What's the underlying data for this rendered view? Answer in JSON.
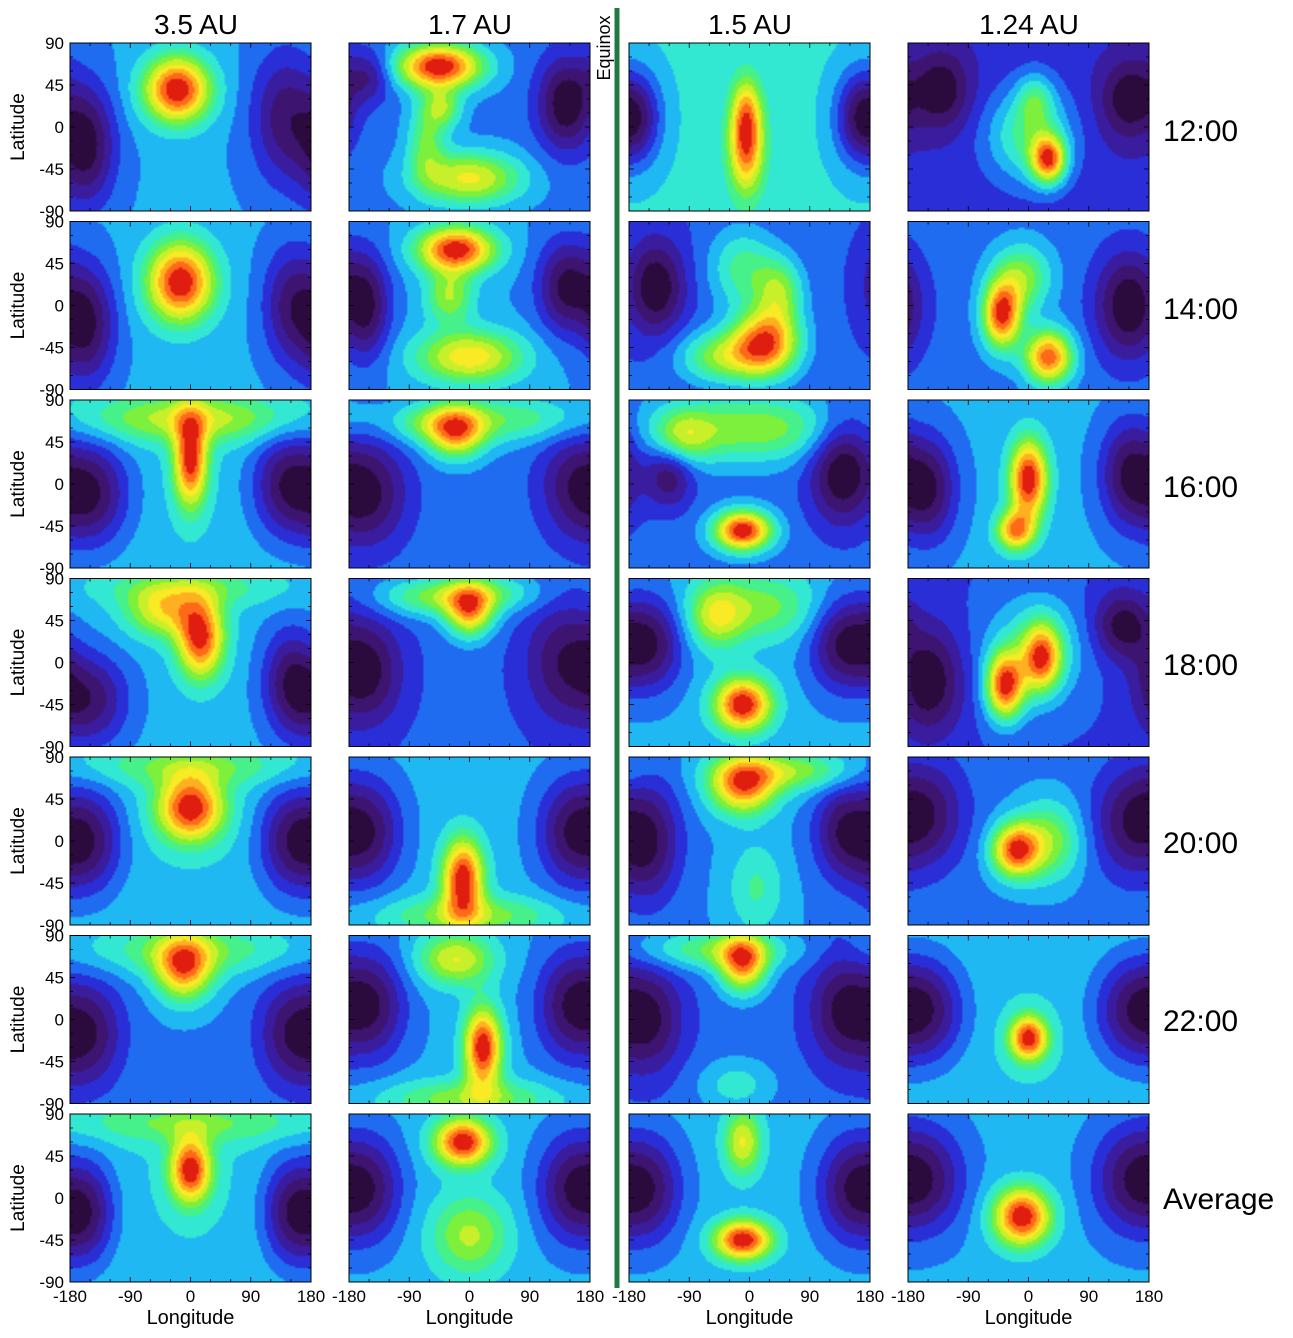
{
  "chart_data": {
    "type": "heatmap",
    "columns": [
      "3.5 AU",
      "1.7 AU",
      "1.5 AU",
      "1.24 AU"
    ],
    "rows": [
      "12:00",
      "14:00",
      "16:00",
      "18:00",
      "20:00",
      "22:00",
      "Average"
    ],
    "equinox_label": "Equinox",
    "xlabel": "Longitude",
    "ylabel": "Latitude",
    "xticks": [
      "-180",
      "-90",
      "0",
      "90",
      "180"
    ],
    "yticks": [
      "90",
      "45",
      "0",
      "-45",
      "-90"
    ],
    "xlim": [
      -180,
      180
    ],
    "ylim": [
      -90,
      90
    ],
    "colors": {
      "scale": [
        "#2b0a3d",
        "#3d1470",
        "#3a1c9e",
        "#2a2ed6",
        "#1f6cf0",
        "#1fb8f2",
        "#33e8d2",
        "#46f08a",
        "#7cf03c",
        "#c8f02a",
        "#f8ea24",
        "#ffb020",
        "#ff6a18",
        "#e01e10"
      ],
      "equinox_line": "#1f7a3f"
    },
    "panels": [
      [
        {
          "blobs": [
            [
              -20,
              40,
              35,
              25,
              1.0
            ]
          ],
          "lows": [
            [
              -155,
              -20,
              30,
              45,
              0.5
            ],
            [
              140,
              10,
              35,
              50,
              0.4
            ]
          ],
          "base": 0.12
        },
        {
          "blobs": [
            [
              -45,
              65,
              45,
              17,
              1.0
            ],
            [
              -40,
              20,
              20,
              15,
              0.4
            ],
            [
              0,
              -55,
              55,
              20,
              0.6
            ],
            [
              -65,
              -15,
              20,
              30,
              0.35
            ]
          ],
          "lows": [
            [
              145,
              25,
              30,
              35,
              0.5
            ],
            [
              -150,
              55,
              25,
              20,
              0.3
            ]
          ],
          "base": 0.2
        },
        {
          "blobs": [
            [
              -5,
              -20,
              18,
              35,
              1.0
            ],
            [
              -5,
              20,
              15,
              25,
              0.45
            ]
          ],
          "lows": [
            [
              -165,
              10,
              25,
              35,
              0.6
            ],
            [
              160,
              10,
              25,
              35,
              0.6
            ]
          ],
          "base": 0.1
        },
        {
          "blobs": [
            [
              30,
              -35,
              18,
              18,
              1.0
            ],
            [
              0,
              -10,
              45,
              35,
              0.5
            ],
            [
              10,
              30,
              20,
              20,
              0.35
            ]
          ],
          "lows": [
            [
              -130,
              40,
              30,
              30,
              0.4
            ],
            [
              150,
              30,
              30,
              30,
              0.4
            ]
          ],
          "base": 0.1
        }
      ],
      [
        {
          "blobs": [
            [
              -15,
              25,
              35,
              30,
              1.0
            ]
          ],
          "lows": [
            [
              -155,
              -20,
              30,
              45,
              0.5
            ],
            [
              150,
              0,
              30,
              45,
              0.4
            ]
          ],
          "base": 0.12
        },
        {
          "blobs": [
            [
              -20,
              60,
              40,
              17,
              1.0
            ],
            [
              0,
              -55,
              55,
              20,
              0.65
            ],
            [
              -30,
              10,
              25,
              20,
              0.45
            ]
          ],
          "lows": [
            [
              -155,
              0,
              25,
              40,
              0.5
            ],
            [
              145,
              20,
              30,
              35,
              0.5
            ]
          ],
          "base": 0.2
        },
        {
          "blobs": [
            [
              25,
              -40,
              35,
              25,
              1.0
            ],
            [
              -40,
              -55,
              45,
              20,
              0.55
            ],
            [
              45,
              15,
              25,
              25,
              0.5
            ],
            [
              -10,
              40,
              35,
              30,
              0.4
            ]
          ],
          "lows": [
            [
              -140,
              20,
              30,
              35,
              0.5
            ]
          ],
          "base": 0.18
        },
        {
          "blobs": [
            [
              -40,
              -10,
              20,
              25,
              0.95
            ],
            [
              30,
              -55,
              25,
              20,
              0.9
            ],
            [
              -10,
              30,
              30,
              25,
              0.45
            ]
          ],
          "lows": [
            [
              150,
              0,
              35,
              40,
              0.5
            ]
          ],
          "base": 0.12
        }
      ],
      [
        {
          "blobs": [
            [
              0,
              25,
              18,
              35,
              1.0
            ],
            [
              0,
              70,
              110,
              18,
              0.5
            ]
          ],
          "lows": [
            [
              -150,
              -10,
              40,
              40,
              0.6
            ],
            [
              140,
              0,
              35,
              40,
              0.5
            ]
          ],
          "base": 0.18
        },
        {
          "blobs": [
            [
              -20,
              55,
              30,
              20,
              1.0
            ],
            [
              60,
              70,
              90,
              18,
              0.5
            ],
            [
              -60,
              65,
              50,
              15,
              0.4
            ]
          ],
          "lows": [
            [
              -150,
              -10,
              40,
              40,
              0.6
            ],
            [
              150,
              0,
              35,
              40,
              0.4
            ]
          ],
          "base": 0.18
        },
        {
          "blobs": [
            [
              -10,
              -50,
              30,
              15,
              1.0
            ],
            [
              0,
              60,
              100,
              25,
              0.45
            ],
            [
              -100,
              50,
              30,
              20,
              0.35
            ]
          ],
          "lows": [
            [
              140,
              15,
              35,
              40,
              0.5
            ],
            [
              -120,
              10,
              25,
              25,
              0.35
            ]
          ],
          "base": 0.22
        },
        {
          "blobs": [
            [
              0,
              5,
              20,
              30,
              1.0
            ],
            [
              -20,
              -50,
              20,
              15,
              0.75
            ]
          ],
          "lows": [
            [
              -150,
              -5,
              30,
              40,
              0.5
            ],
            [
              150,
              10,
              30,
              40,
              0.5
            ]
          ],
          "base": 0.12
        }
      ],
      [
        {
          "blobs": [
            [
              15,
              25,
              25,
              30,
              1.0
            ],
            [
              -40,
              55,
              40,
              20,
              0.6
            ],
            [
              0,
              80,
              100,
              15,
              0.3
            ]
          ],
          "lows": [
            [
              -150,
              -40,
              40,
              35,
              0.5
            ],
            [
              150,
              -20,
              30,
              40,
              0.5
            ]
          ],
          "base": 0.18
        },
        {
          "blobs": [
            [
              0,
              55,
              25,
              20,
              1.0
            ],
            [
              -60,
              70,
              60,
              15,
              0.5
            ],
            [
              30,
              75,
              60,
              15,
              0.4
            ]
          ],
          "lows": [
            [
              -150,
              -10,
              35,
              40,
              0.5
            ],
            [
              140,
              0,
              40,
              45,
              0.45
            ]
          ],
          "base": 0.18
        },
        {
          "blobs": [
            [
              -10,
              -45,
              30,
              20,
              1.0
            ],
            [
              -50,
              50,
              30,
              25,
              0.45
            ],
            [
              20,
              60,
              60,
              25,
              0.35
            ]
          ],
          "lows": [
            [
              -150,
              20,
              35,
              35,
              0.5
            ],
            [
              140,
              20,
              35,
              35,
              0.5
            ]
          ],
          "base": 0.22
        },
        {
          "blobs": [
            [
              -35,
              -25,
              20,
              25,
              1.0
            ],
            [
              20,
              5,
              20,
              25,
              0.8
            ],
            [
              10,
              15,
              50,
              40,
              0.35
            ]
          ],
          "lows": [
            [
              -150,
              -20,
              35,
              40,
              0.45
            ],
            [
              140,
              40,
              30,
              25,
              0.4
            ]
          ],
          "base": 0.12
        }
      ],
      [
        {
          "blobs": [
            [
              0,
              35,
              35,
              25,
              1.0
            ],
            [
              0,
              80,
              110,
              15,
              0.3
            ]
          ],
          "lows": [
            [
              -150,
              0,
              35,
              40,
              0.5
            ],
            [
              150,
              0,
              35,
              40,
              0.5
            ]
          ],
          "base": 0.15
        },
        {
          "blobs": [
            [
              -10,
              -40,
              22,
              30,
              1.0
            ],
            [
              0,
              -80,
              90,
              15,
              0.4
            ]
          ],
          "lows": [
            [
              -150,
              10,
              35,
              40,
              0.45
            ],
            [
              150,
              10,
              35,
              40,
              0.45
            ]
          ],
          "base": 0.2
        },
        {
          "blobs": [
            [
              -10,
              60,
              35,
              22,
              1.0
            ],
            [
              60,
              75,
              70,
              15,
              0.5
            ],
            [
              10,
              -50,
              30,
              35,
              0.3
            ]
          ],
          "lows": [
            [
              -155,
              0,
              35,
              45,
              0.6
            ],
            [
              140,
              10,
              30,
              35,
              0.5
            ]
          ],
          "base": 0.18
        },
        {
          "blobs": [
            [
              -20,
              -10,
              25,
              20,
              1.0
            ],
            [
              30,
              0,
              35,
              30,
              0.5
            ]
          ],
          "lows": [
            [
              -150,
              30,
              40,
              40,
              0.4
            ],
            [
              150,
              20,
              40,
              40,
              0.4
            ]
          ],
          "base": 0.1
        }
      ],
      [
        {
          "blobs": [
            [
              -10,
              55,
              30,
              25,
              1.0
            ],
            [
              0,
              75,
              120,
              20,
              0.45
            ]
          ],
          "lows": [
            [
              -150,
              -15,
              35,
              40,
              0.5
            ],
            [
              150,
              -15,
              35,
              40,
              0.5
            ]
          ],
          "base": 0.18
        },
        {
          "blobs": [
            [
              20,
              -30,
              20,
              30,
              1.0
            ],
            [
              -20,
              65,
              40,
              20,
              0.55
            ],
            [
              0,
              -85,
              90,
              15,
              0.4
            ]
          ],
          "lows": [
            [
              -145,
              15,
              35,
              40,
              0.45
            ],
            [
              150,
              15,
              35,
              40,
              0.45
            ]
          ],
          "base": 0.2
        },
        {
          "blobs": [
            [
              -10,
              60,
              25,
              22,
              1.0
            ],
            [
              -50,
              75,
              80,
              15,
              0.5
            ],
            [
              -20,
              -70,
              40,
              20,
              0.3
            ]
          ],
          "lows": [
            [
              -150,
              0,
              35,
              40,
              0.5
            ],
            [
              140,
              10,
              35,
              40,
              0.5
            ]
          ],
          "base": 0.2
        },
        {
          "blobs": [
            [
              0,
              -20,
              20,
              17,
              1.0
            ]
          ],
          "lows": [
            [
              -150,
              10,
              40,
              40,
              0.5
            ],
            [
              150,
              10,
              40,
              40,
              0.45
            ]
          ],
          "base": 0.1
        }
      ],
      [
        {
          "blobs": [
            [
              0,
              30,
              22,
              25,
              1.0
            ],
            [
              0,
              80,
              120,
              15,
              0.3
            ]
          ],
          "lows": [
            [
              -155,
              -15,
              30,
              40,
              0.55
            ],
            [
              150,
              -15,
              30,
              40,
              0.55
            ]
          ],
          "base": 0.15
        },
        {
          "blobs": [
            [
              -10,
              60,
              30,
              18,
              1.0
            ],
            [
              0,
              -40,
              40,
              30,
              0.45
            ]
          ],
          "lows": [
            [
              -150,
              10,
              35,
              40,
              0.45
            ],
            [
              150,
              10,
              35,
              40,
              0.45
            ]
          ],
          "base": 0.2
        },
        {
          "blobs": [
            [
              -10,
              -45,
              30,
              15,
              1.0
            ],
            [
              -10,
              60,
              20,
              25,
              0.55
            ]
          ],
          "lows": [
            [
              -150,
              10,
              35,
              40,
              0.45
            ],
            [
              150,
              10,
              35,
              40,
              0.45
            ]
          ],
          "base": 0.2
        },
        {
          "blobs": [
            [
              -10,
              -20,
              30,
              22,
              1.0
            ]
          ],
          "lows": [
            [
              -150,
              20,
              40,
              40,
              0.4
            ],
            [
              150,
              20,
              40,
              40,
              0.4
            ]
          ],
          "base": 0.12
        }
      ]
    ]
  }
}
